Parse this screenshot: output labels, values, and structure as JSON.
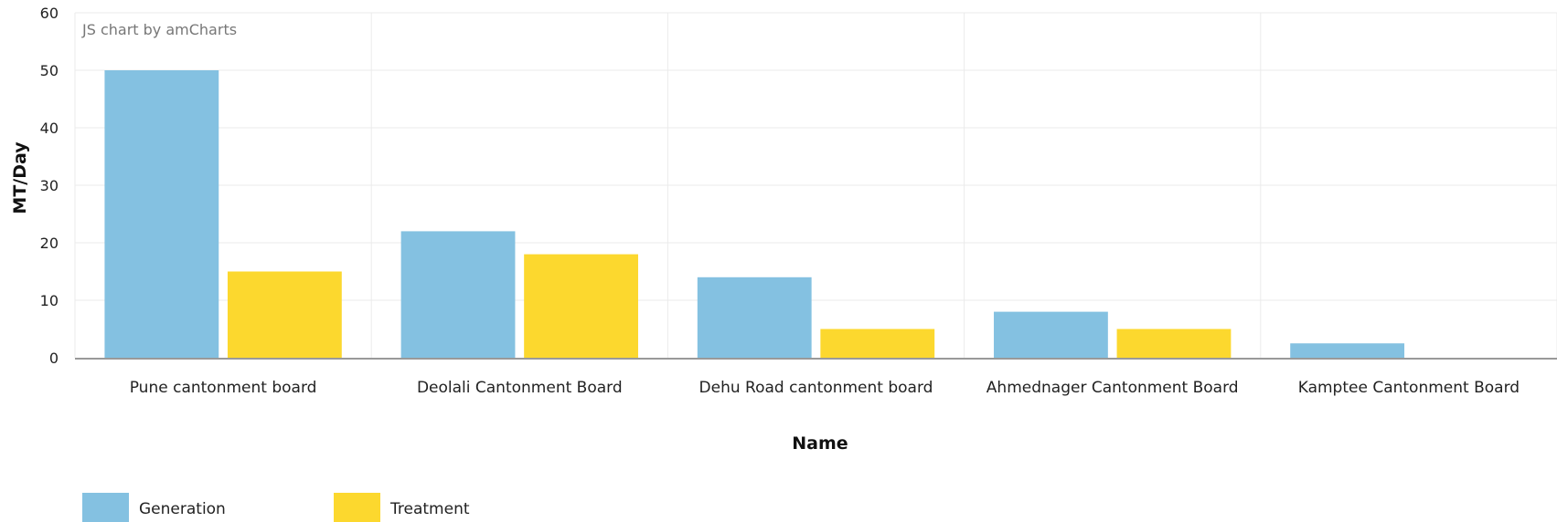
{
  "credit": "JS chart by amCharts",
  "chart_data": {
    "type": "bar",
    "categories": [
      "Pune cantonment board",
      "Deolali Cantonment Board",
      "Dehu Road cantonment board",
      "Ahmednager  Cantonment Board",
      "Kamptee Cantonment Board"
    ],
    "series": [
      {
        "name": "Generation",
        "color": "#84C1E1",
        "values": [
          50,
          22,
          14,
          8,
          2.5
        ]
      },
      {
        "name": "Treatment",
        "color": "#FCD82E",
        "values": [
          15,
          18,
          5,
          5,
          0
        ]
      }
    ],
    "xlabel": "Name",
    "ylabel": "MT/Day",
    "ylim": [
      0,
      60
    ],
    "yticks": [
      0,
      10,
      20,
      30,
      40,
      50,
      60
    ],
    "grid": true,
    "legend_position": "bottom-left"
  }
}
